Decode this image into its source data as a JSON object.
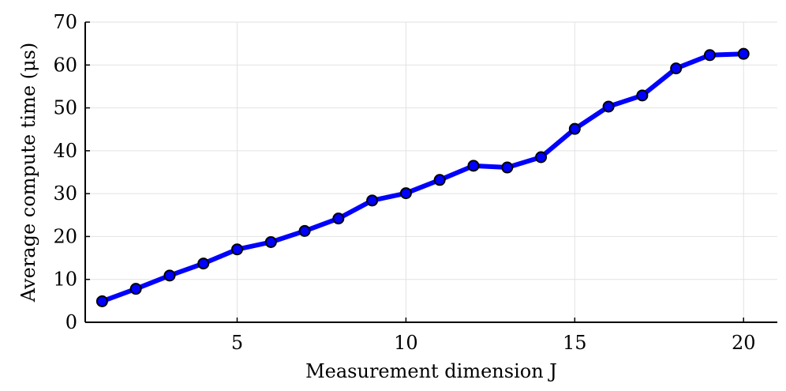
{
  "chart_data": {
    "type": "line",
    "xlabel": "Measurement dimension J",
    "ylabel": "Average compute time (μs)",
    "xlim": [
      0.5,
      21.0
    ],
    "ylim": [
      0,
      70
    ],
    "xticks": [
      5,
      10,
      15,
      20
    ],
    "yticks": [
      0,
      10,
      20,
      30,
      40,
      50,
      60,
      70
    ],
    "grid": true,
    "series": [
      {
        "color": "#0000ff",
        "x": [
          1,
          2,
          3,
          4,
          5,
          6,
          7,
          8,
          9,
          10,
          11,
          12,
          13,
          14,
          15,
          16,
          17,
          18,
          19,
          20
        ],
        "y": [
          4.9,
          7.8,
          10.9,
          13.7,
          17.0,
          18.7,
          21.3,
          24.2,
          28.4,
          30.1,
          33.2,
          36.5,
          36.1,
          38.5,
          45.1,
          50.3,
          52.9,
          59.2,
          62.3,
          62.6
        ]
      }
    ]
  }
}
